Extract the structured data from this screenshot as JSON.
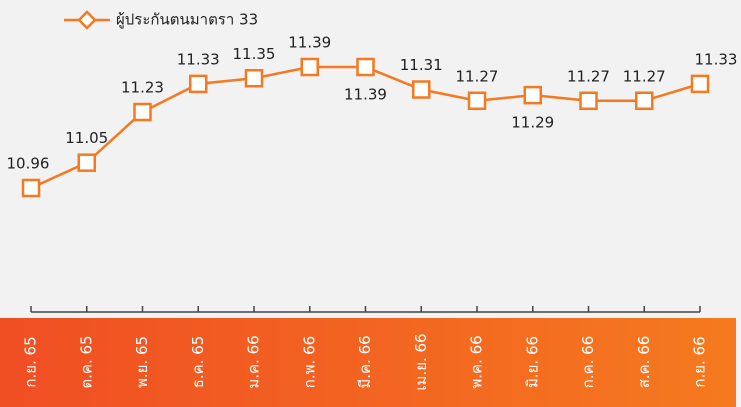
{
  "chart_data": {
    "type": "line",
    "categories": [
      "ก.ย. 65",
      "ต.ค. 65",
      "พ.ย. 65",
      "ธ.ค. 65",
      "ม.ค. 66",
      "ก.พ. 66",
      "มี.ค. 66",
      "เม.ย. 66",
      "พ.ค. 66",
      "มิ.ย. 66",
      "ก.ค. 66",
      "ส.ค. 66",
      "ก.ย. 66"
    ],
    "series": [
      {
        "name": "ผู้ประกันตนมาตรา 33",
        "color": "#f47920",
        "values": [
          10.96,
          11.05,
          11.23,
          11.33,
          11.35,
          11.39,
          11.39,
          11.31,
          11.27,
          11.29,
          11.27,
          11.27,
          11.33
        ]
      }
    ],
    "legend": "top-left"
  }
}
